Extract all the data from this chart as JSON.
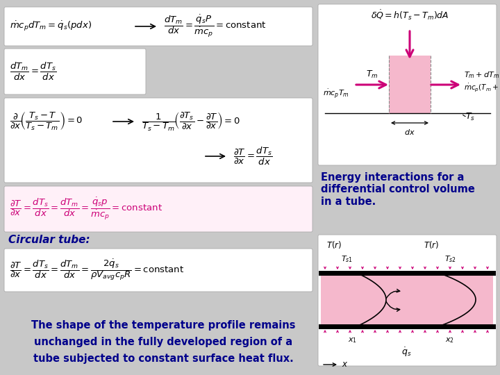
{
  "bg_color": "#c8c8c8",
  "pink_color": "#f5b8cc",
  "magenta_color": "#cc0077",
  "dark_pink": "#cc0077",
  "dark_blue": "#00008b",
  "white": "#ffffff",
  "caption_text": "Energy interactions for a\ndifferential control volume\nin a tube.",
  "bottom_text_line1": "The shape of the temperature profile remains",
  "bottom_text_line2": "unchanged in the fully developed region of a",
  "bottom_text_line3": "tube subjected to constant surface heat flux.",
  "circular_tube_label": "Circular tube:"
}
